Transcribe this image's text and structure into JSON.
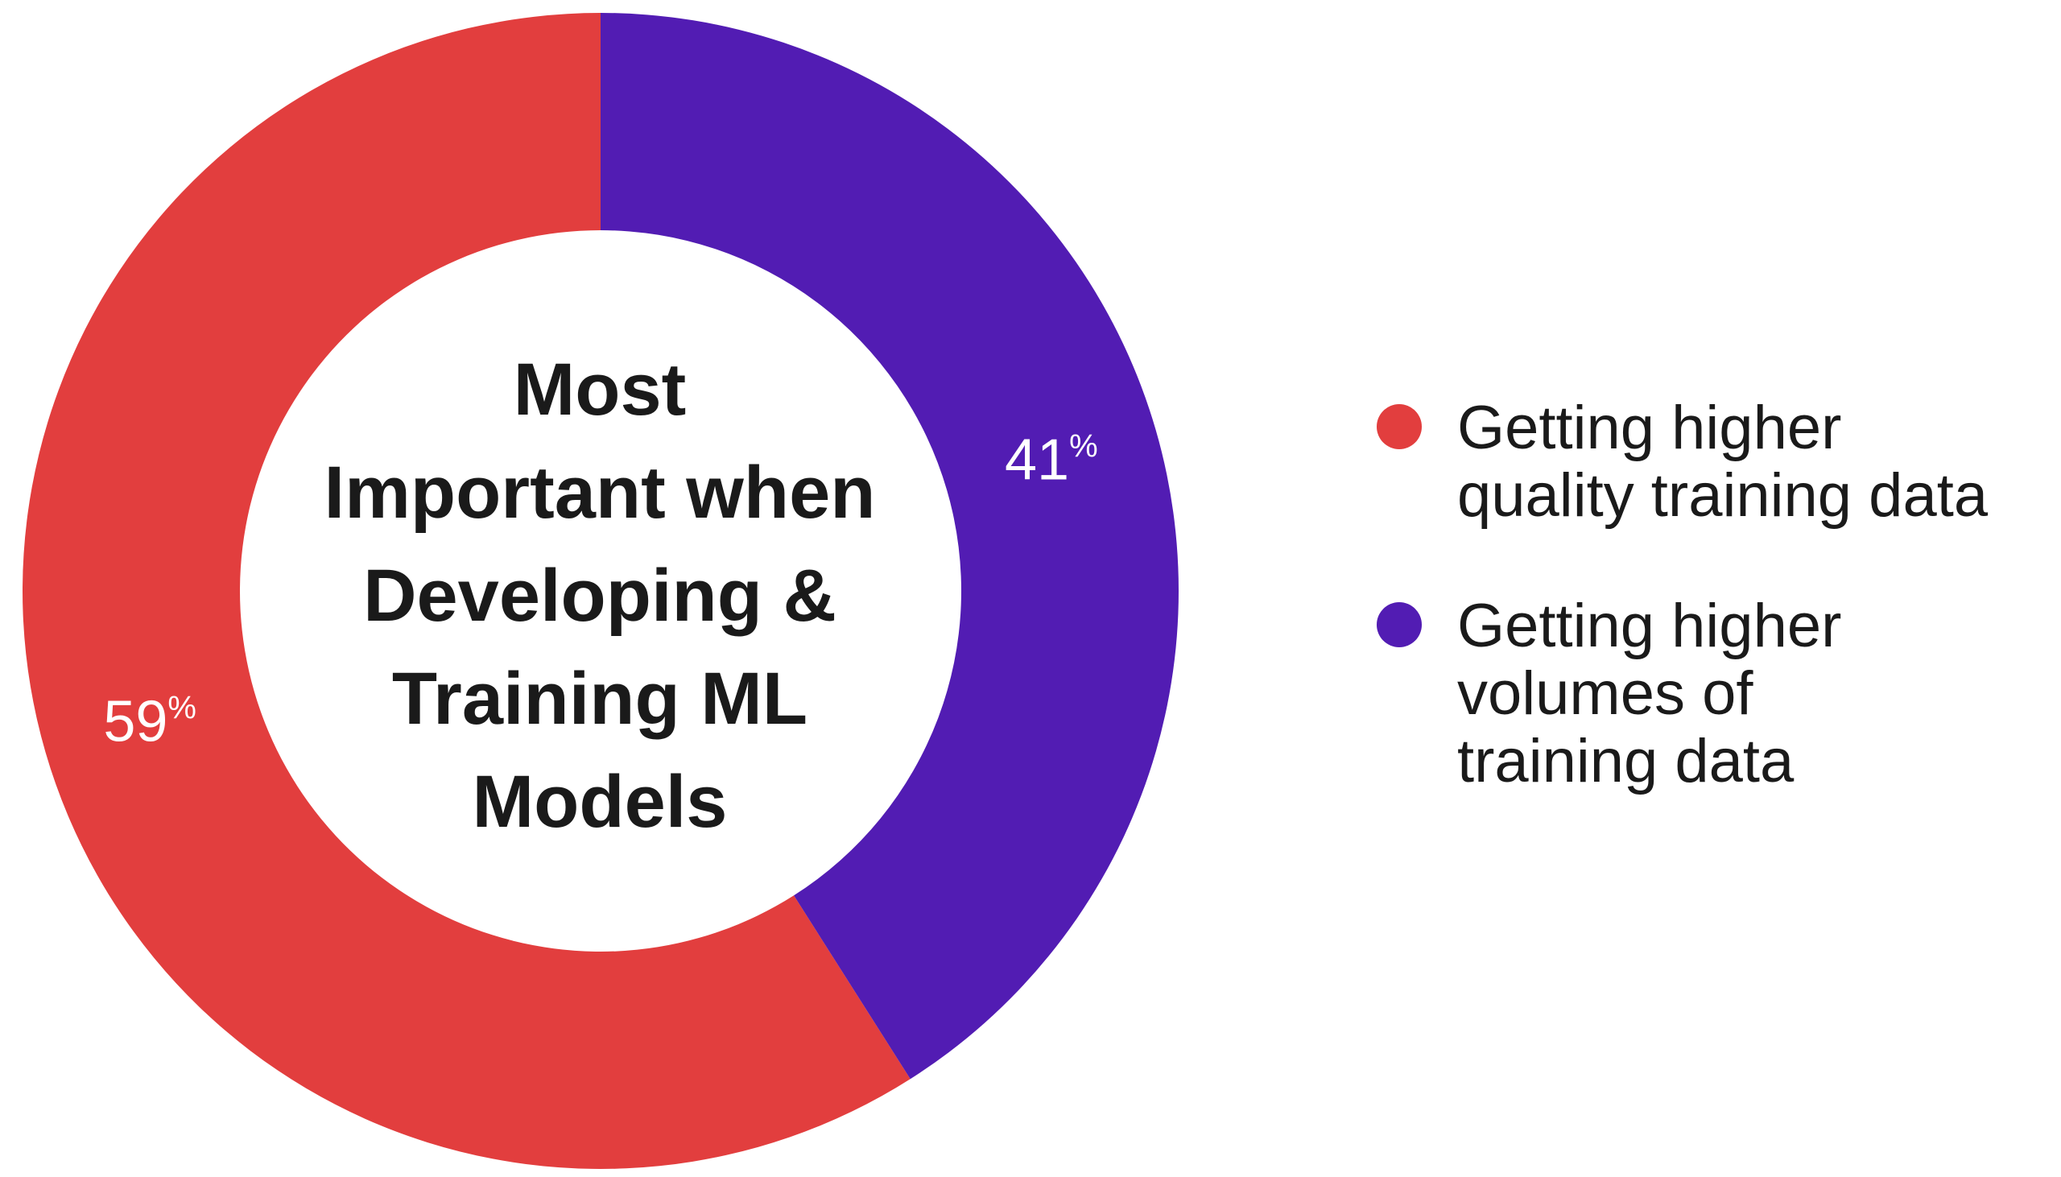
{
  "chart_data": {
    "type": "pie",
    "donut": true,
    "title_lines": [
      "Most",
      "Important when",
      "Developing &",
      "Training ML",
      "Models"
    ],
    "slices": [
      {
        "name": "Getting higher quality training data",
        "value": 59,
        "label_number": "59",
        "label_unit": "%",
        "color": "#E23E3E"
      },
      {
        "name": "Getting higher volumes of training data",
        "value": 41,
        "label_number": "41",
        "label_unit": "%",
        "color": "#521CB3"
      }
    ],
    "legend": [
      {
        "lines": [
          "Getting higher",
          "quality training data"
        ],
        "color": "#E23E3E"
      },
      {
        "lines": [
          "Getting higher",
          "volumes of",
          "training data"
        ],
        "color": "#521CB3"
      }
    ],
    "legend_position": "right"
  }
}
